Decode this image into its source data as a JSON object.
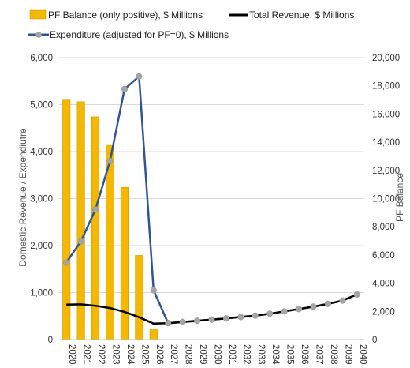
{
  "chart_data": {
    "type": "bar",
    "categories": [
      "2020",
      "2021",
      "2022",
      "2023",
      "2024",
      "2025",
      "2026",
      "2027",
      "2028",
      "2029",
      "2030",
      "2031",
      "2032",
      "2033",
      "2034",
      "2035",
      "2036",
      "2037",
      "2038",
      "2039",
      "2040"
    ],
    "series": [
      {
        "name": "PF Balance (only positive), $ Millions",
        "type": "bar",
        "axis": "right",
        "color": "#f5b800",
        "values": [
          17050,
          16870,
          15800,
          13830,
          10800,
          5970,
          750,
          null,
          null,
          null,
          null,
          null,
          null,
          null,
          null,
          null,
          null,
          null,
          null,
          null,
          null
        ]
      },
      {
        "name": "Total Revenue, $ Millions",
        "type": "line",
        "axis": "left",
        "color": "#000000",
        "values": [
          745,
          750,
          720,
          670,
          590,
          475,
          340,
          350,
          375,
          400,
          425,
          450,
          480,
          510,
          550,
          600,
          650,
          700,
          760,
          830,
          960
        ]
      },
      {
        "name": "Expenditure (adjusted for PF=0), $ Millions",
        "type": "line",
        "axis": "left",
        "marker": "circle",
        "color": "#2f5597",
        "markerColor": "#a5a5a5",
        "values": [
          1640,
          2090,
          2770,
          3800,
          5330,
          5600,
          1050,
          350,
          375,
          400,
          425,
          450,
          480,
          510,
          550,
          600,
          650,
          700,
          760,
          830,
          960
        ]
      }
    ],
    "y_left": {
      "label": "Domestic Revenue / Expendiutre",
      "ylim": [
        0,
        6000
      ],
      "ticks": [
        "0",
        "1,000",
        "2,000",
        "3,000",
        "4,000",
        "5,000",
        "6,000"
      ]
    },
    "y_right": {
      "label": "PF Balance",
      "ylim": [
        0,
        20000
      ],
      "ticks": [
        "0",
        "2,000",
        "4,000",
        "6,000",
        "8,000",
        "10,000",
        "12,000",
        "14,000",
        "16,000",
        "18,000",
        "20,000"
      ]
    },
    "grid": true,
    "legend": "top"
  }
}
